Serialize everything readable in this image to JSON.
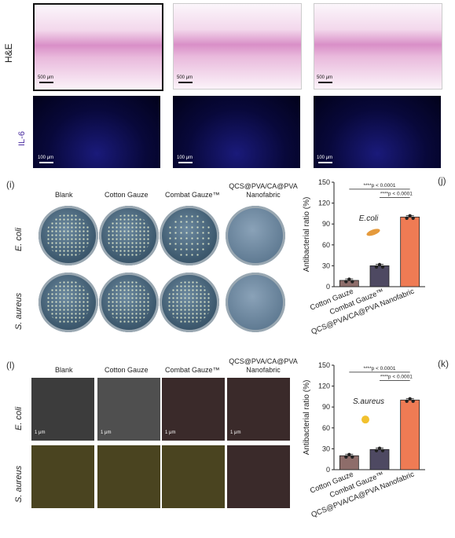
{
  "top": {
    "he_label": "H&E",
    "il6_label": "IL-6",
    "he_scale": [
      "500 μm",
      "500 μm",
      "500 μm"
    ],
    "if_scale": [
      "100 μm",
      "100 μm",
      "100 μm"
    ]
  },
  "panel_i": {
    "letter": "(i)",
    "columns": [
      "Blank",
      "Cotton Gauze",
      "Combat Gauze™",
      "QCS@PVA/CA@PVA Nanofabric"
    ],
    "rows": [
      "E. coli",
      "S. aureus"
    ]
  },
  "panel_l": {
    "letter": "(l)",
    "columns": [
      "Blank",
      "Cotton Gauze",
      "Combat Gauze™",
      "QCS@PVA/CA@PVA Nanofabric"
    ],
    "rows": [
      "E. coli",
      "S. aureus"
    ],
    "scale": "1 μm"
  },
  "chart_data": [
    {
      "panel": "(j)",
      "type": "bar",
      "categories": [
        "Cotton Gauze",
        "Combat Gauze™",
        "QCS@PVA/CA@PVA Nanofabric"
      ],
      "values": [
        9,
        30,
        100
      ],
      "ylabel": "Antibacterial ratio (%)",
      "ylim": [
        0,
        150
      ],
      "yticks": [
        0,
        30,
        60,
        90,
        120,
        150
      ],
      "colors": [
        "#8e6d6a",
        "#4e4962",
        "#ef7b54"
      ],
      "annotations": [
        "****p < 0.0001",
        "****p < 0.0001"
      ],
      "inset_label": "E.coli"
    },
    {
      "panel": "(k)",
      "type": "bar",
      "categories": [
        "Cotton Gauze",
        "Combat Gauze™",
        "QCS@PVA/CA@PVA Nanofabric"
      ],
      "values": [
        20,
        29,
        100
      ],
      "ylabel": "Antibacterial ratio (%)",
      "ylim": [
        0,
        150
      ],
      "yticks": [
        0,
        30,
        60,
        90,
        120,
        150
      ],
      "colors": [
        "#8e6d6a",
        "#4e4962",
        "#ef7b54"
      ],
      "annotations": [
        "****p < 0.0001",
        "****p < 0.0001"
      ],
      "inset_label": "S.aureus"
    }
  ]
}
